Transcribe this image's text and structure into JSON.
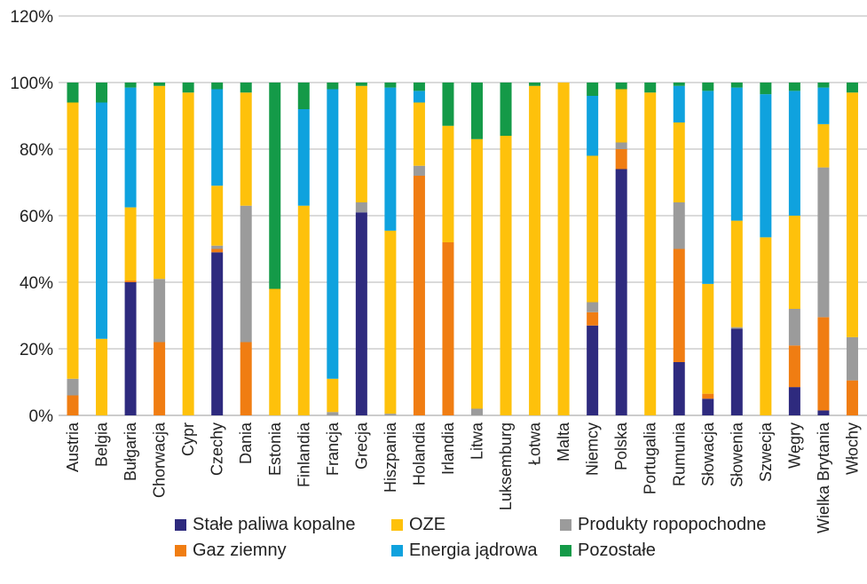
{
  "chart_data": {
    "type": "bar",
    "stacked": true,
    "title": "",
    "xlabel": "",
    "ylabel": "",
    "ylim": [
      0,
      120
    ],
    "yticks": [
      "0%",
      "20%",
      "40%",
      "60%",
      "80%",
      "100%",
      "120%"
    ],
    "grid": true,
    "legend_position": "bottom",
    "categories": [
      "Austria",
      "Belgia",
      "Bułgaria",
      "Chorwacja",
      "Cypr",
      "Czechy",
      "Dania",
      "Estonia",
      "Finlandia",
      "Francja",
      "Grecja",
      "Hiszpania",
      "Holandia",
      "Irlandia",
      "Litwa",
      "Luksemburg",
      "Łotwa",
      "Malta",
      "Niemcy",
      "Polska",
      "Portugalia",
      "Rumunia",
      "Słowacja",
      "Słowenia",
      "Szwecja",
      "Węgry",
      "Wielka Brytania",
      "Włochy"
    ],
    "series": [
      {
        "name": "Stałe paliwa kopalne",
        "color": "#2e2a7e",
        "values": [
          0,
          0,
          40,
          0,
          0,
          49,
          0,
          0,
          0,
          0,
          61,
          0,
          0,
          0,
          0,
          0,
          0,
          0,
          27,
          74,
          0,
          16,
          5,
          26,
          0,
          8.5,
          1.5,
          0
        ]
      },
      {
        "name": "Gaz ziemny",
        "color": "#f07d12",
        "values": [
          6,
          0,
          0.5,
          22,
          0,
          1,
          22,
          0,
          0,
          0,
          0,
          0,
          72,
          52,
          0,
          0,
          0,
          0,
          4,
          6,
          0,
          34,
          1.5,
          0,
          0,
          12.5,
          28,
          10.5
        ]
      },
      {
        "name": "Produkty ropopochodne",
        "color": "#9b9b9b",
        "values": [
          5,
          0,
          0,
          19,
          0,
          1,
          41,
          0,
          0,
          1,
          3,
          0.5,
          3,
          0,
          2,
          0,
          0,
          0,
          3,
          2,
          0,
          14,
          0,
          0.5,
          0,
          11,
          45,
          13
        ]
      },
      {
        "name": "OZE",
        "color": "#fec10b",
        "values": [
          83,
          23,
          22,
          58,
          97,
          18,
          34,
          38,
          63,
          10,
          35,
          55,
          19,
          35,
          81,
          84,
          99,
          100,
          44,
          16,
          97,
          24,
          33,
          32,
          53.5,
          28,
          13,
          73.5
        ]
      },
      {
        "name": "Energia jądrowa",
        "color": "#0fa2de",
        "values": [
          0,
          71,
          36,
          0,
          0,
          29,
          0,
          0,
          29,
          87,
          0,
          43,
          3.5,
          0,
          0,
          0,
          0,
          0,
          18,
          0,
          0,
          11,
          58,
          40,
          43,
          37.5,
          11,
          0
        ]
      },
      {
        "name": "Pozostałe",
        "color": "#149a48",
        "values": [
          6,
          6,
          1.5,
          1,
          3,
          2,
          3,
          62,
          8,
          2,
          1,
          1.5,
          2.5,
          13,
          17,
          16,
          1,
          0,
          4,
          2,
          3,
          1,
          2.5,
          1.5,
          3.5,
          2.5,
          1.5,
          3
        ]
      }
    ]
  },
  "legend": {
    "items": [
      {
        "label": "Stałe paliwa kopalne",
        "color": "#2e2a7e"
      },
      {
        "label": "OZE",
        "color": "#fec10b"
      },
      {
        "label": "Produkty ropopochodne",
        "color": "#9b9b9b"
      },
      {
        "label": "Gaz ziemny",
        "color": "#f07d12"
      },
      {
        "label": "Energia jądrowa",
        "color": "#0fa2de"
      },
      {
        "label": "Pozostałe",
        "color": "#149a48"
      }
    ]
  }
}
